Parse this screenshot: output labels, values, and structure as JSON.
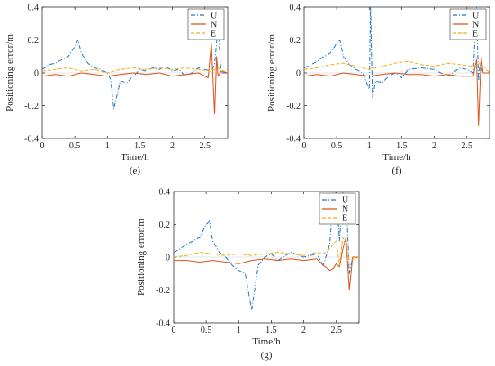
{
  "colors": {
    "U": "#1f77c4",
    "N": "#d95319",
    "E": "#edb120"
  },
  "chart_data": [
    {
      "type": "line",
      "caption": "(e)",
      "xlabel": "Time/h",
      "ylabel": "Positioning error/m",
      "xlim": [
        0,
        2.85
      ],
      "ylim": [
        -0.4,
        0.4
      ],
      "xticks": [
        0,
        0.5,
        1,
        1.5,
        2,
        2.5
      ],
      "yticks": [
        -0.4,
        -0.2,
        0,
        0.2,
        0.4
      ],
      "legend": {
        "placement": "top-right",
        "entries": [
          "U",
          "N",
          "E"
        ]
      },
      "series": [
        {
          "name": "U",
          "color": "#1f77c4",
          "style": "dashdot",
          "x": [
            0,
            0.1,
            0.2,
            0.3,
            0.4,
            0.5,
            0.55,
            0.6,
            0.7,
            0.8,
            0.9,
            1.0,
            1.05,
            1.1,
            1.2,
            1.3,
            1.4,
            1.5,
            1.6,
            1.7,
            1.8,
            1.9,
            2.0,
            2.1,
            2.2,
            2.3,
            2.4,
            2.5,
            2.6,
            2.65,
            2.7,
            2.75,
            2.85
          ],
          "y": [
            0.02,
            0.05,
            0.06,
            0.08,
            0.1,
            0.16,
            0.2,
            0.12,
            0.06,
            0.03,
            0.02,
            0.0,
            -0.04,
            -0.22,
            -0.05,
            -0.06,
            -0.02,
            0.02,
            0.01,
            0.03,
            0.02,
            0.04,
            0.01,
            0.02,
            -0.02,
            0.0,
            0.03,
            0.02,
            0.01,
            0.05,
            0.28,
            0.0,
            0.0
          ]
        },
        {
          "name": "N",
          "color": "#d95319",
          "style": "solid",
          "x": [
            0,
            0.2,
            0.4,
            0.6,
            0.8,
            1.0,
            1.2,
            1.4,
            1.6,
            1.8,
            2.0,
            2.2,
            2.4,
            2.55,
            2.6,
            2.65,
            2.68,
            2.7,
            2.75,
            2.85
          ],
          "y": [
            -0.02,
            -0.01,
            -0.02,
            0.0,
            -0.01,
            -0.02,
            -0.01,
            0.0,
            -0.01,
            0.0,
            -0.02,
            -0.01,
            0.0,
            -0.03,
            0.18,
            -0.25,
            0.1,
            -0.02,
            0.01,
            0.0
          ]
        },
        {
          "name": "E",
          "color": "#edb120",
          "style": "dashed",
          "x": [
            0,
            0.2,
            0.4,
            0.6,
            0.8,
            1.0,
            1.2,
            1.4,
            1.6,
            1.8,
            2.0,
            2.2,
            2.4,
            2.6,
            2.7,
            2.85
          ],
          "y": [
            0.01,
            0.02,
            0.03,
            0.01,
            0.02,
            0.0,
            0.02,
            0.03,
            0.02,
            0.03,
            0.02,
            0.03,
            0.02,
            0.01,
            0.03,
            0.0
          ]
        }
      ]
    },
    {
      "type": "line",
      "caption": "(f)",
      "xlabel": "Time/h",
      "ylabel": "Positioning error/m",
      "xlim": [
        0,
        2.85
      ],
      "ylim": [
        -0.4,
        0.4
      ],
      "xticks": [
        0,
        0.5,
        1,
        1.5,
        2,
        2.5
      ],
      "yticks": [
        -0.4,
        -0.2,
        0,
        0.2,
        0.4
      ],
      "legend": {
        "placement": "top-right",
        "entries": [
          "U",
          "N",
          "E"
        ]
      },
      "series": [
        {
          "name": "U",
          "color": "#1f77c4",
          "style": "dashdot",
          "x": [
            0,
            0.1,
            0.2,
            0.3,
            0.4,
            0.5,
            0.55,
            0.6,
            0.7,
            0.8,
            0.9,
            1.0,
            1.02,
            1.05,
            1.1,
            1.2,
            1.3,
            1.4,
            1.5,
            1.6,
            1.8,
            2.0,
            2.2,
            2.4,
            2.5,
            2.6,
            2.65,
            2.68,
            2.7,
            2.75,
            2.85
          ],
          "y": [
            0.03,
            0.05,
            0.07,
            0.1,
            0.12,
            0.18,
            0.2,
            0.1,
            0.05,
            0.02,
            0.0,
            -0.1,
            0.4,
            -0.15,
            -0.05,
            -0.06,
            -0.02,
            0.0,
            -0.03,
            0.02,
            0.03,
            0.02,
            -0.02,
            0.03,
            0.02,
            0.0,
            0.4,
            -0.05,
            0.05,
            0.0,
            0.0
          ]
        },
        {
          "name": "N",
          "color": "#d95319",
          "style": "solid",
          "x": [
            0,
            0.2,
            0.4,
            0.6,
            0.8,
            1.0,
            1.2,
            1.4,
            1.6,
            1.8,
            2.0,
            2.2,
            2.4,
            2.6,
            2.65,
            2.68,
            2.72,
            2.75,
            2.85
          ],
          "y": [
            -0.02,
            -0.01,
            -0.02,
            0.0,
            -0.01,
            -0.02,
            -0.01,
            0.0,
            -0.01,
            -0.01,
            -0.02,
            -0.01,
            -0.02,
            -0.02,
            0.08,
            -0.32,
            0.1,
            0.0,
            0.0
          ]
        },
        {
          "name": "E",
          "color": "#edb120",
          "style": "dashed",
          "x": [
            0,
            0.2,
            0.4,
            0.6,
            0.8,
            1.0,
            1.2,
            1.4,
            1.6,
            1.8,
            2.0,
            2.2,
            2.4,
            2.6,
            2.7,
            2.85
          ],
          "y": [
            0.02,
            0.03,
            0.05,
            0.06,
            0.04,
            0.02,
            0.04,
            0.06,
            0.07,
            0.05,
            0.04,
            0.06,
            0.05,
            0.04,
            0.06,
            0.0
          ]
        }
      ]
    },
    {
      "type": "line",
      "caption": "(g)",
      "xlabel": "Time/h",
      "ylabel": "Positioning error/m",
      "xlim": [
        0,
        2.85
      ],
      "ylim": [
        -0.4,
        0.4
      ],
      "xticks": [
        0,
        0.5,
        1,
        1.5,
        2,
        2.5
      ],
      "yticks": [
        -0.4,
        -0.2,
        0,
        0.2,
        0.4
      ],
      "legend": {
        "placement": "top-right",
        "entries": [
          "U",
          "N",
          "E"
        ]
      },
      "series": [
        {
          "name": "U",
          "color": "#1f77c4",
          "style": "dashdot",
          "x": [
            0,
            0.1,
            0.2,
            0.3,
            0.4,
            0.5,
            0.55,
            0.6,
            0.7,
            0.8,
            0.9,
            1.0,
            1.1,
            1.2,
            1.3,
            1.4,
            1.5,
            1.6,
            1.8,
            2.0,
            2.2,
            2.3,
            2.4,
            2.45,
            2.5,
            2.55,
            2.6,
            2.65,
            2.7,
            2.75,
            2.85
          ],
          "y": [
            0.03,
            0.05,
            0.08,
            0.1,
            0.12,
            0.2,
            0.22,
            0.1,
            0.03,
            0.0,
            -0.05,
            -0.08,
            -0.1,
            -0.32,
            -0.05,
            0.0,
            0.02,
            -0.02,
            0.03,
            0.0,
            0.02,
            -0.05,
            0.08,
            0.35,
            0.4,
            0.1,
            0.4,
            0.4,
            -0.1,
            0.0,
            0.0
          ]
        },
        {
          "name": "N",
          "color": "#d95319",
          "style": "solid",
          "x": [
            0,
            0.2,
            0.4,
            0.6,
            0.8,
            1.0,
            1.2,
            1.4,
            1.6,
            1.8,
            2.0,
            2.2,
            2.3,
            2.4,
            2.45,
            2.5,
            2.55,
            2.6,
            2.65,
            2.7,
            2.75,
            2.85
          ],
          "y": [
            -0.02,
            -0.02,
            -0.03,
            -0.02,
            -0.03,
            -0.04,
            -0.02,
            -0.01,
            -0.02,
            -0.01,
            -0.02,
            -0.01,
            -0.05,
            -0.08,
            -0.07,
            -0.04,
            -0.06,
            0.05,
            0.12,
            -0.2,
            0.0,
            0.0
          ]
        },
        {
          "name": "E",
          "color": "#edb120",
          "style": "dashed",
          "x": [
            0,
            0.2,
            0.4,
            0.6,
            0.8,
            1.0,
            1.2,
            1.4,
            1.6,
            1.8,
            2.0,
            2.2,
            2.3,
            2.4,
            2.5,
            2.55,
            2.6,
            2.65,
            2.7,
            2.85
          ],
          "y": [
            0.0,
            0.01,
            0.03,
            0.02,
            0.01,
            0.02,
            0.01,
            0.02,
            0.03,
            0.02,
            0.01,
            0.03,
            0.02,
            0.05,
            0.1,
            -0.05,
            0.12,
            0.06,
            -0.02,
            0.0
          ]
        }
      ]
    }
  ]
}
